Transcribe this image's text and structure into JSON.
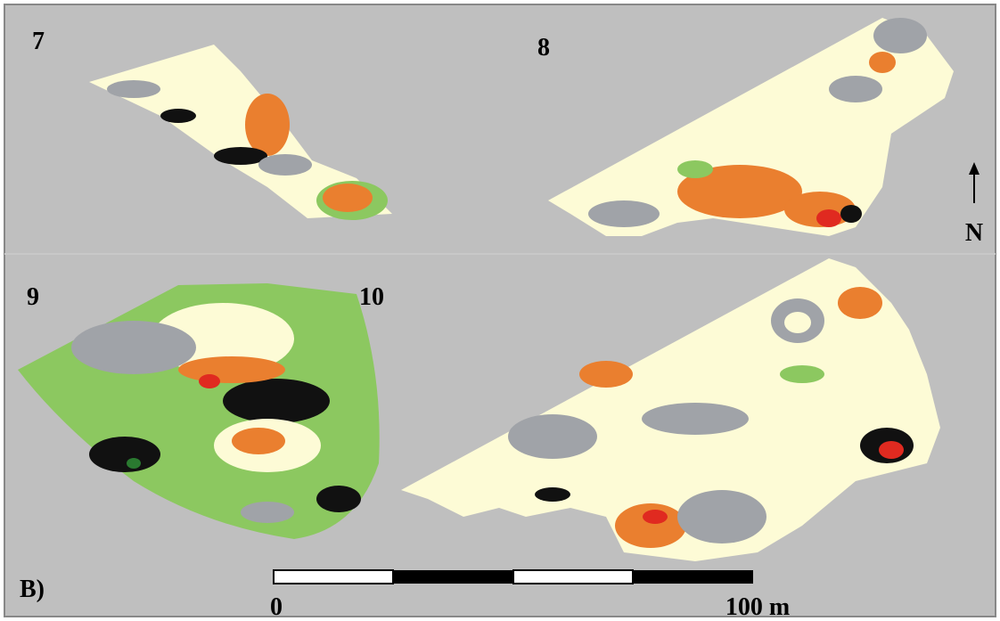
{
  "panels": [
    {
      "label": "7"
    },
    {
      "label": "8"
    },
    {
      "label": "9"
    },
    {
      "label": "10"
    }
  ],
  "north_label": "N",
  "figure_label": "B)",
  "scale_bar": {
    "start_label": "0",
    "end_label": "100 m"
  }
}
